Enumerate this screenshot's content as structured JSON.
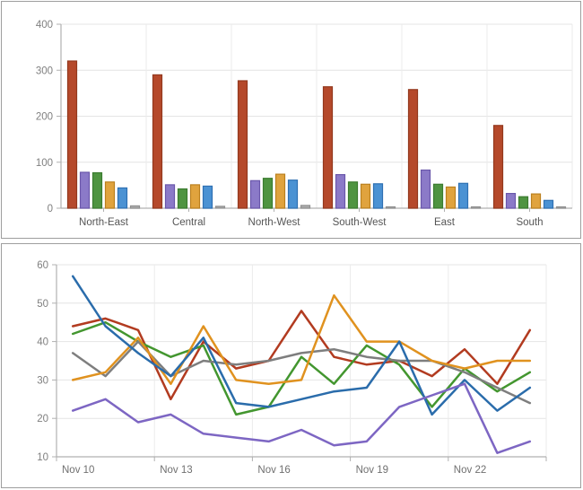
{
  "app": {
    "background": "#ffffff",
    "panel_border": "#9e9e9e",
    "gridline_color": "#e4e4e4",
    "axis_color": "#b0b0b0",
    "ytick_label_color": "#7f7f7f",
    "xtick_label_color_top": "#555555",
    "xtick_label_color_bottom": "#707070"
  },
  "chart_data": [
    {
      "type": "bar",
      "title": "",
      "categories": [
        "North-East",
        "Central",
        "North-West",
        "South-West",
        "East",
        "South"
      ],
      "series": [
        {
          "name": "rust-red-bars",
          "color": "#b5492b",
          "border": "#93381d",
          "values": [
            320,
            290,
            277,
            264,
            258,
            180
          ]
        },
        {
          "name": "purple-bars",
          "color": "#8b7ac8",
          "border": "#6a57ab",
          "values": [
            78,
            51,
            60,
            73,
            83,
            32
          ]
        },
        {
          "name": "green-bars",
          "color": "#4f9441",
          "border": "#3b7b2f",
          "values": [
            77,
            42,
            65,
            57,
            52,
            25
          ]
        },
        {
          "name": "orange-bars",
          "color": "#e0a33e",
          "border": "#bb801f",
          "values": [
            57,
            51,
            74,
            52,
            46,
            31
          ]
        },
        {
          "name": "blue-bars",
          "color": "#4b92d3",
          "border": "#2e70b2",
          "values": [
            44,
            48,
            61,
            53,
            54,
            17
          ]
        },
        {
          "name": "gray-bars",
          "color": "#ababab",
          "border": "#909090",
          "values": [
            5,
            4,
            6,
            3,
            3,
            2
          ]
        }
      ],
      "xlabel": "",
      "ylabel": "",
      "ylim": [
        0,
        400
      ],
      "yticks": [
        0,
        100,
        200,
        300,
        400
      ],
      "grid": true,
      "legend": "none"
    },
    {
      "type": "line",
      "title": "",
      "x": [
        "Nov 10",
        "Nov 11",
        "Nov 12",
        "Nov 13",
        "Nov 14",
        "Nov 15",
        "Nov 16",
        "Nov 17",
        "Nov 18",
        "Nov 19",
        "Nov 20",
        "Nov 21",
        "Nov 22",
        "Nov 23",
        "Nov 24"
      ],
      "xtick_labels": [
        "Nov 10",
        "Nov 13",
        "Nov 16",
        "Nov 19",
        "Nov 22"
      ],
      "xtick_interval": 3,
      "series": [
        {
          "name": "red-line",
          "color": "#b23b20",
          "values": [
            44,
            46,
            43,
            25,
            40,
            33,
            35,
            48,
            36,
            34,
            35,
            31,
            38,
            29,
            43
          ]
        },
        {
          "name": "green-line",
          "color": "#43962f",
          "values": [
            42,
            45,
            40,
            36,
            39,
            21,
            23,
            36,
            29,
            39,
            34,
            23,
            33,
            27,
            32
          ]
        },
        {
          "name": "gray-line",
          "color": "#7e7e7e",
          "values": [
            37,
            31,
            40,
            31,
            35,
            34,
            35,
            37,
            38,
            36,
            35,
            35,
            32,
            28,
            24
          ]
        },
        {
          "name": "orange-line",
          "color": "#e0921f",
          "values": [
            30,
            32,
            41,
            29,
            44,
            30,
            29,
            30,
            52,
            40,
            40,
            35,
            33,
            35,
            35
          ]
        },
        {
          "name": "blue-line",
          "color": "#2a6cab",
          "values": [
            57,
            44,
            37,
            31,
            41,
            24,
            23,
            25,
            27,
            28,
            40,
            21,
            30,
            22,
            28
          ]
        },
        {
          "name": "purple-line",
          "color": "#7d66c3",
          "values": [
            22,
            25,
            19,
            21,
            16,
            15,
            14,
            17,
            13,
            14,
            23,
            26,
            29,
            11,
            14
          ]
        }
      ],
      "xlabel": "",
      "ylabel": "",
      "ylim": [
        10,
        60
      ],
      "yticks": [
        10,
        20,
        30,
        40,
        50,
        60
      ],
      "grid": true,
      "legend": "none"
    }
  ]
}
